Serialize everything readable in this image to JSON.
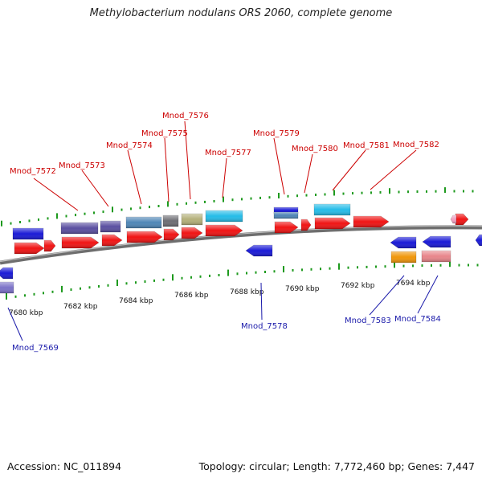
{
  "title": "Methylobacterium nodulans ORS 2060, complete genome",
  "footer": {
    "accession": "Accession: NC_011894",
    "summary": "Topology: circular; Length: 7,772,460 bp; Genes: 7,447"
  },
  "colors": {
    "backbone": "#808080",
    "tick": "#1e9a1e",
    "label_red": "#cc0000",
    "label_blue": "#1a1aaa"
  },
  "ticks": [
    {
      "label": "7680 kbp"
    },
    {
      "label": "7682 kbp"
    },
    {
      "label": "7684 kbp"
    },
    {
      "label": "7686 kbp"
    },
    {
      "label": "7688 kbp"
    },
    {
      "label": "7690 kbp"
    },
    {
      "label": "7692 kbp"
    },
    {
      "label": "7694 kbp"
    }
  ],
  "gene_labels": {
    "forward": [
      "Mnod_7572",
      "Mnod_7573",
      "Mnod_7574",
      "Mnod_7575",
      "Mnod_7576",
      "Mnod_7577",
      "Mnod_7579",
      "Mnod_7580",
      "Mnod_7581",
      "Mnod_7582"
    ],
    "reverse": [
      "Mnod_7569",
      "Mnod_7578",
      "Mnod_7583",
      "Mnod_7584"
    ]
  }
}
